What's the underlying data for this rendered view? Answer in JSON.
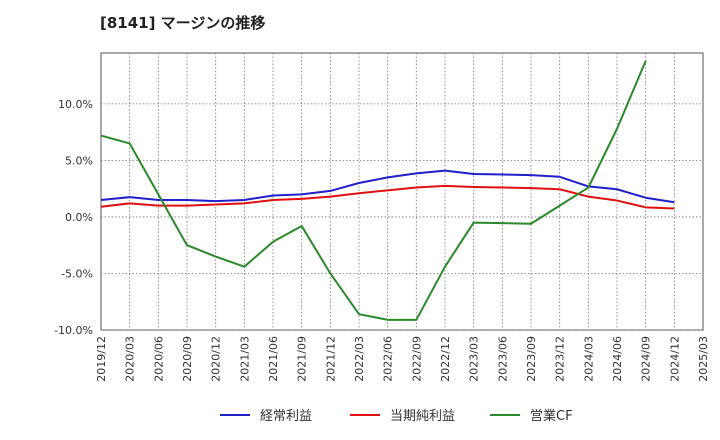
{
  "title": "[8141]  マージンの推移",
  "chart_data": {
    "type": "line",
    "x": [
      "2019/12",
      "2020/03",
      "2020/06",
      "2020/09",
      "2020/12",
      "2021/03",
      "2021/06",
      "2021/09",
      "2021/12",
      "2022/03",
      "2022/06",
      "2022/09",
      "2022/12",
      "2023/03",
      "2023/06",
      "2023/09",
      "2023/12",
      "2024/03",
      "2024/06",
      "2024/09",
      "2024/12",
      "2025/03"
    ],
    "yticks": [
      10.0,
      5.0,
      0.0,
      -5.0,
      -10.0
    ],
    "ytick_labels": [
      "10.0%",
      "5.0%",
      "0.0%",
      "-5.0%",
      "-10.0%"
    ],
    "ylim": [
      -10.0,
      14.5
    ],
    "grid": true,
    "legend_position": "bottom",
    "series": [
      {
        "name": "経常利益",
        "color": "#1f1fcc",
        "values": [
          1.5,
          1.75,
          1.5,
          1.5,
          1.4,
          1.5,
          1.9,
          2.0,
          2.3,
          3.0,
          3.5,
          3.85,
          4.1,
          3.8,
          3.75,
          3.7,
          3.55,
          2.7,
          2.45,
          1.7,
          1.3,
          null
        ]
      },
      {
        "name": "当期純利益",
        "color": "#e01010",
        "values": [
          0.9,
          1.2,
          1.0,
          1.0,
          1.1,
          1.2,
          1.5,
          1.6,
          1.8,
          2.1,
          2.35,
          2.6,
          2.75,
          2.65,
          2.6,
          2.55,
          2.45,
          1.8,
          1.45,
          0.85,
          0.75,
          null
        ]
      },
      {
        "name": "営業CF",
        "color": "#2a8a2a",
        "values": [
          7.2,
          6.5,
          2.0,
          -2.5,
          -3.5,
          -4.4,
          -2.2,
          -0.8,
          -5.0,
          -8.6,
          -9.1,
          -9.1,
          -4.4,
          -0.5,
          -0.55,
          -0.6,
          1.0,
          2.6,
          7.8,
          13.8,
          null,
          null
        ]
      }
    ]
  }
}
